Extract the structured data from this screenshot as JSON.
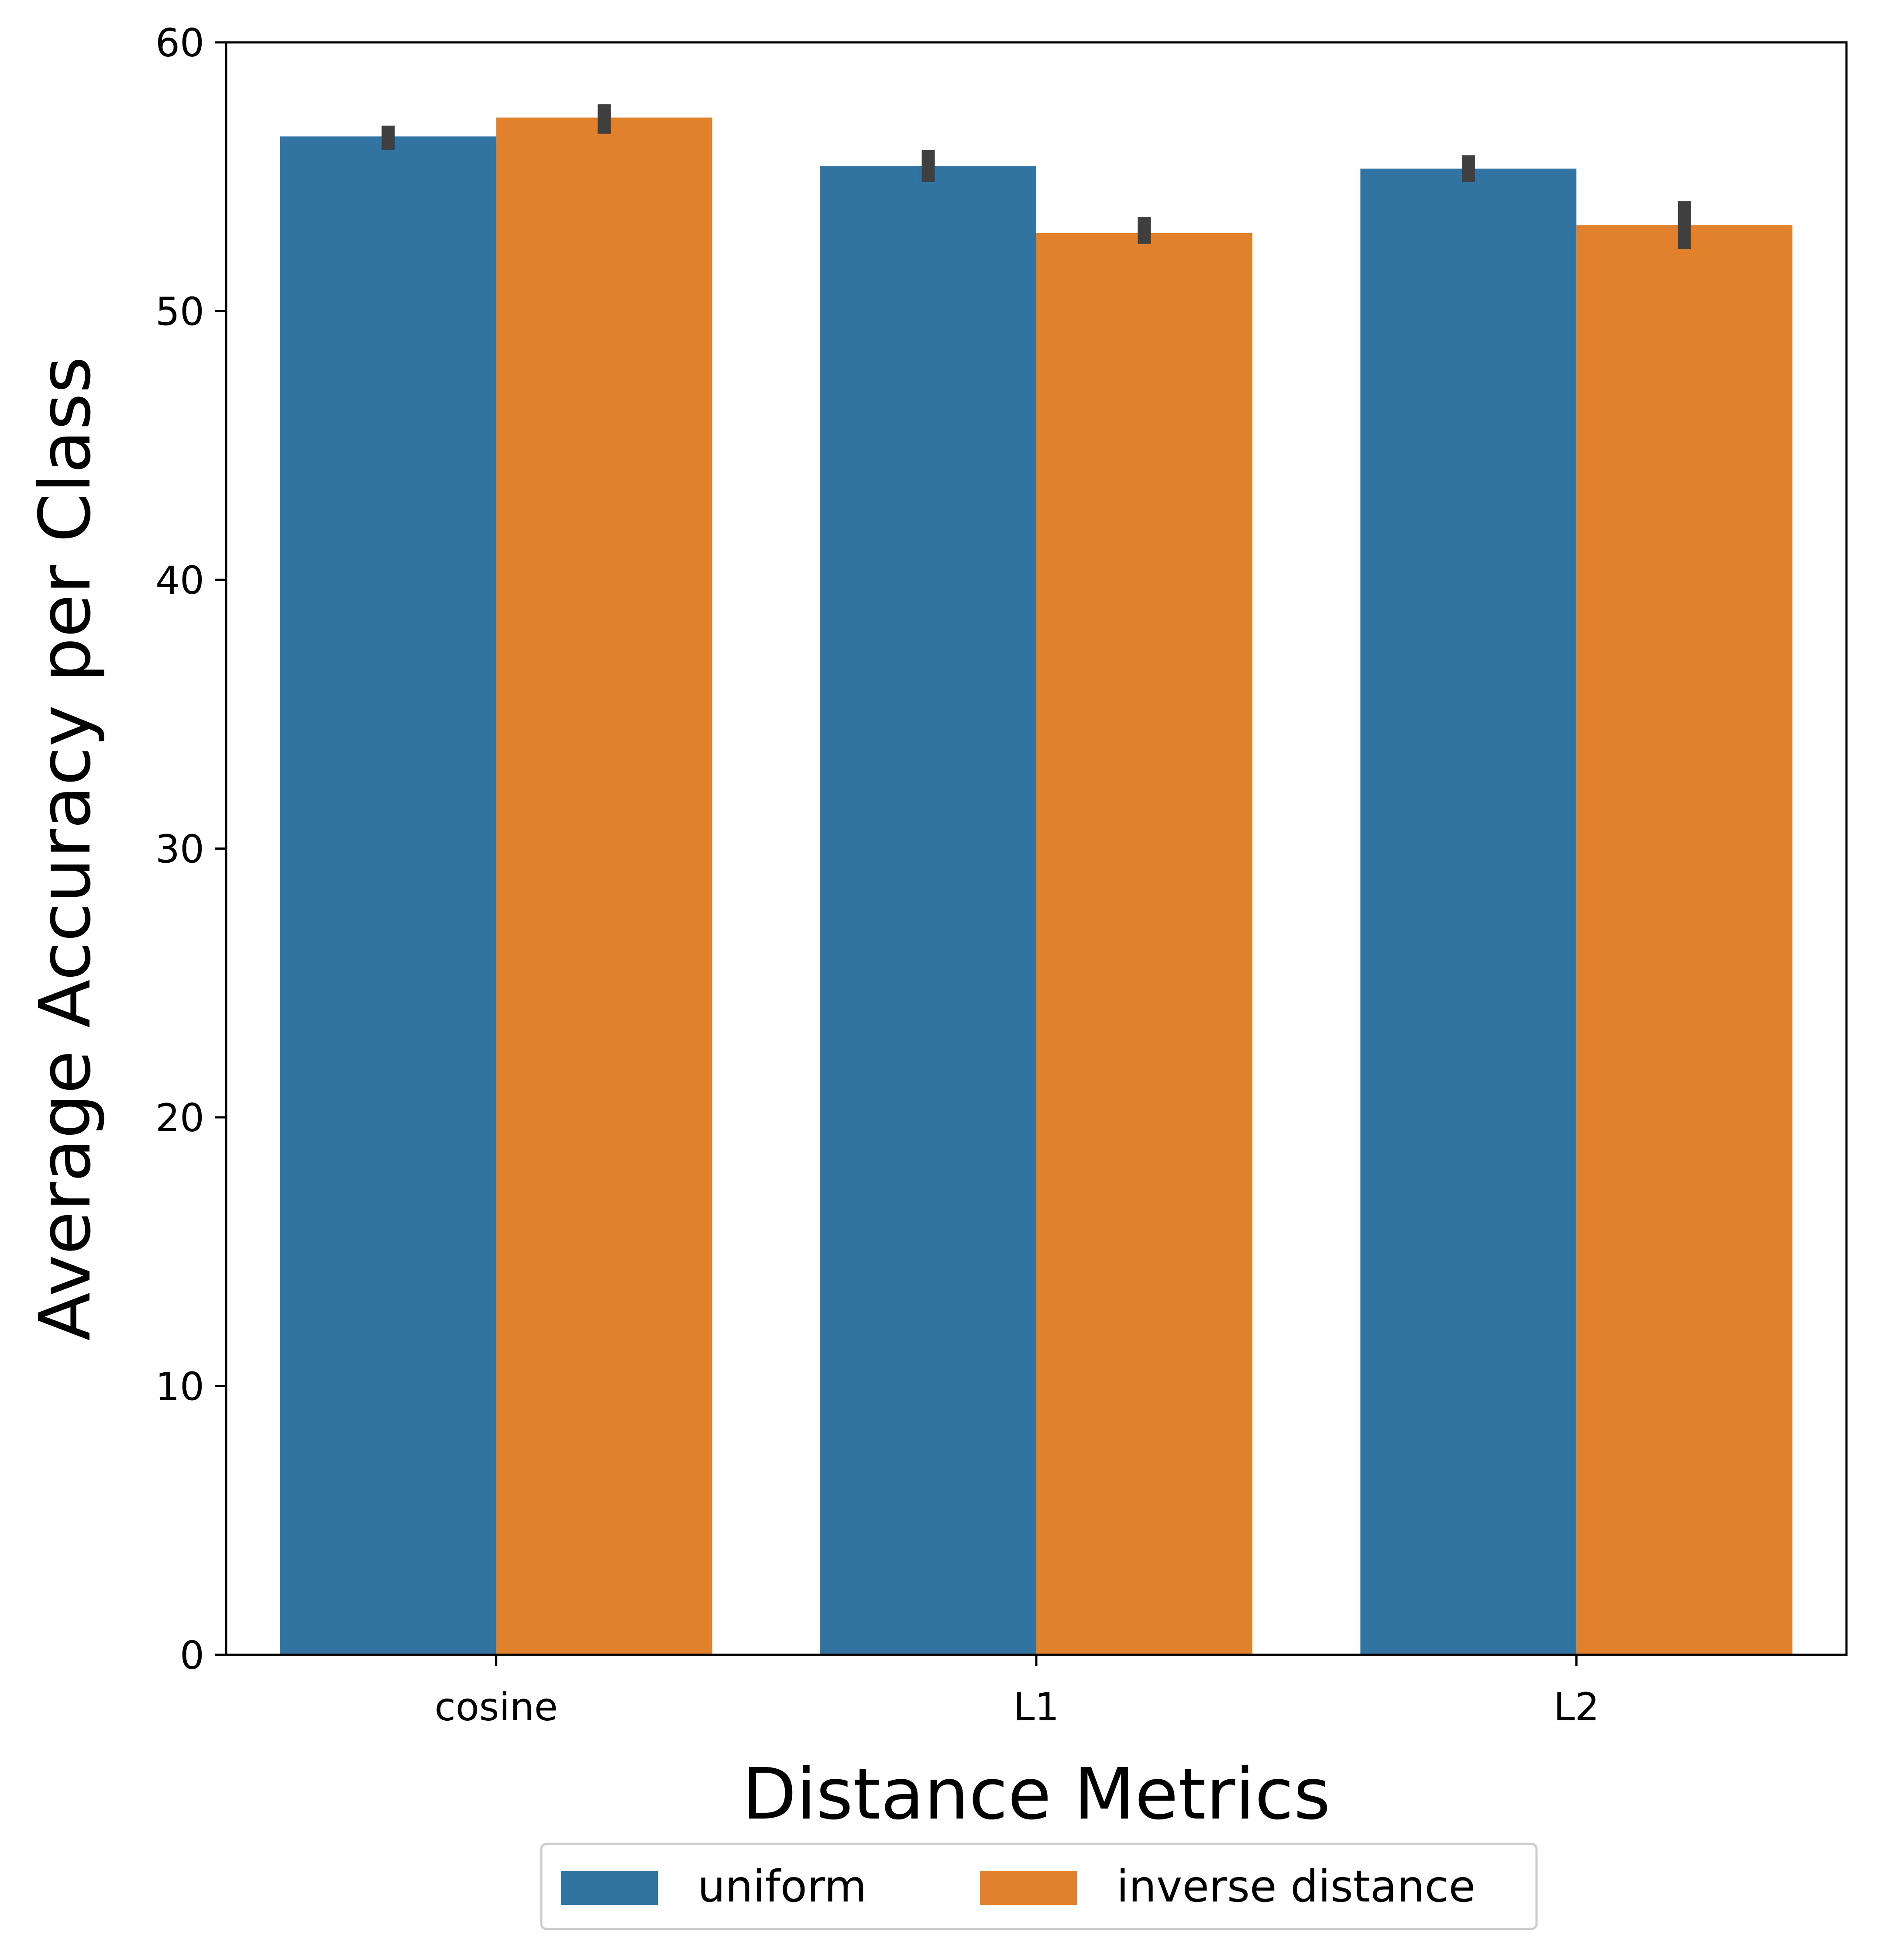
{
  "chart_data": {
    "type": "bar",
    "xlabel": "Distance Metrics",
    "ylabel": "Average Accuracy per Class",
    "ylim": [
      0,
      60
    ],
    "yticks": [
      0,
      10,
      20,
      30,
      40,
      50,
      60
    ],
    "categories": [
      "cosine",
      "L1",
      "L2"
    ],
    "grid": false,
    "legend_position": "bottom-center",
    "series": [
      {
        "name": "uniform",
        "color": "#3274a1",
        "values": [
          56.5,
          55.4,
          55.3
        ],
        "error_low": [
          56.0,
          54.8,
          54.8
        ],
        "error_high": [
          56.9,
          56.0,
          55.8
        ]
      },
      {
        "name": "inverse distance",
        "color": "#e1812c",
        "values": [
          57.2,
          52.9,
          53.2
        ],
        "error_low": [
          56.6,
          52.5,
          52.3
        ],
        "error_high": [
          57.7,
          53.5,
          54.1
        ]
      }
    ],
    "error_bar_color": "#3f3f3f"
  }
}
